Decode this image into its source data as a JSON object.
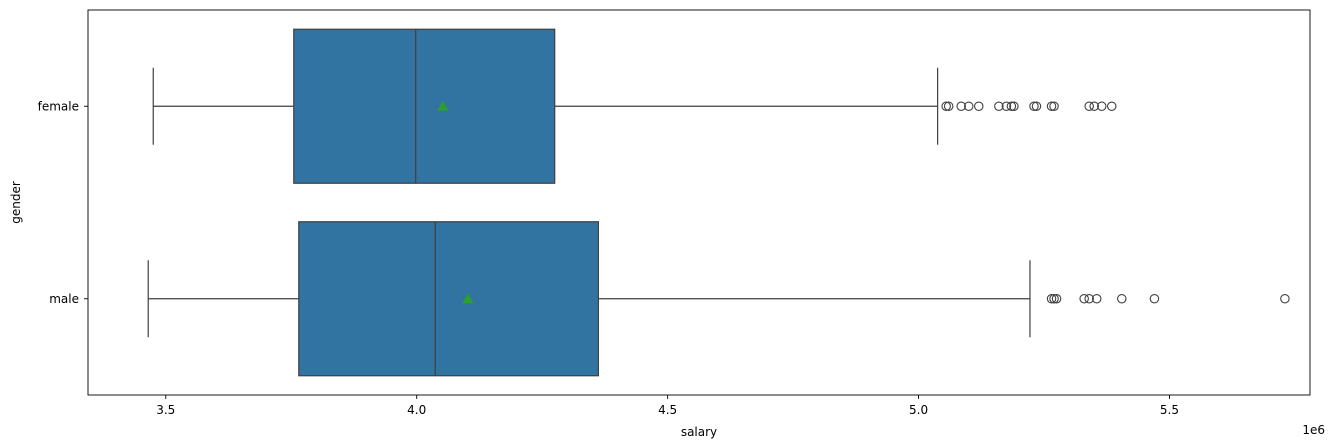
{
  "chart_data": {
    "type": "box",
    "orientation": "horizontal",
    "xlabel": "salary",
    "ylabel": "gender",
    "x_offset_label": "1e6",
    "xlim": [
      3.345,
      5.78
    ],
    "x_ticks": [
      3.5,
      4.0,
      4.5,
      5.0,
      5.5
    ],
    "x_tick_labels": [
      "3.5",
      "4.0",
      "4.5",
      "5.0",
      "5.5"
    ],
    "grid": false,
    "legend": "none",
    "colors": {
      "box_fill": "#3274a1",
      "line": "#3f3f3f",
      "mean_marker": "#2ca02c"
    },
    "categories": [
      "female",
      "male"
    ],
    "series": [
      {
        "category": "female",
        "whisker_low": 3.475,
        "q1": 3.755,
        "median": 3.998,
        "q3": 4.275,
        "whisker_high": 5.038,
        "mean": 4.052,
        "outliers": [
          5.055,
          5.06,
          5.085,
          5.1,
          5.12,
          5.16,
          5.175,
          5.185,
          5.19,
          5.23,
          5.235,
          5.265,
          5.27,
          5.34,
          5.35,
          5.365,
          5.385
        ]
      },
      {
        "category": "male",
        "whisker_low": 3.465,
        "q1": 3.765,
        "median": 4.037,
        "q3": 4.362,
        "whisker_high": 5.222,
        "mean": 4.102,
        "outliers": [
          5.265,
          5.27,
          5.275,
          5.33,
          5.34,
          5.355,
          5.405,
          5.47,
          5.73
        ]
      }
    ]
  }
}
